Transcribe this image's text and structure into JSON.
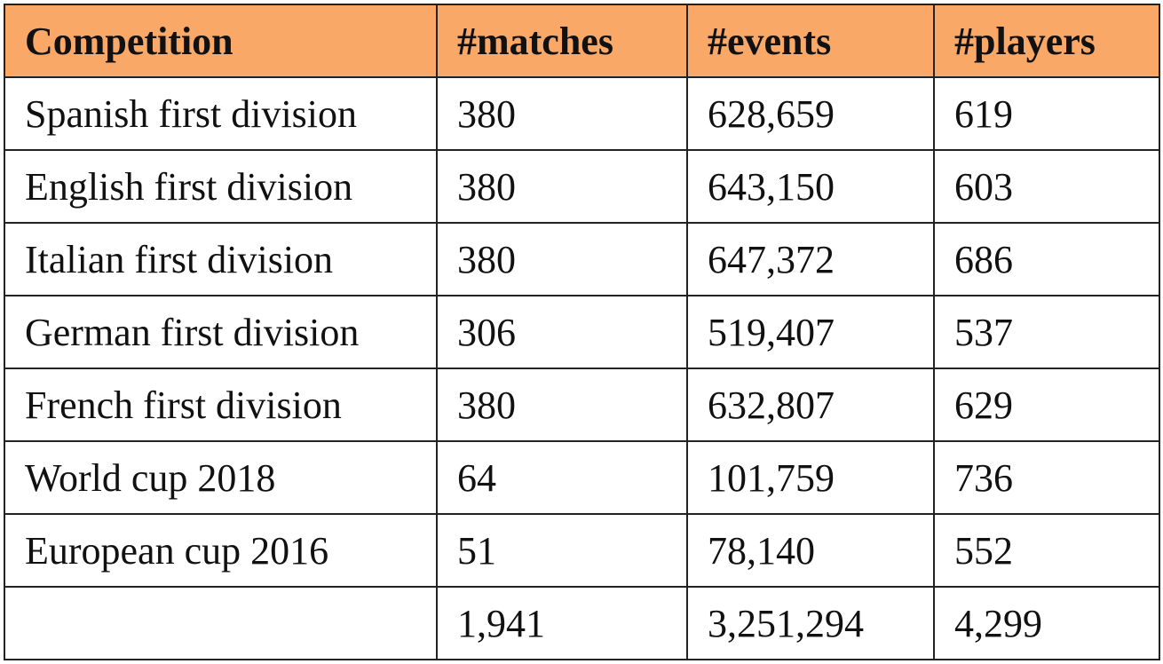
{
  "table": {
    "header_bg": "#f9a868",
    "columns": [
      "Competition",
      "#matches",
      "#events",
      "#players"
    ],
    "rows": [
      [
        "Spanish first division",
        "380",
        "628,659",
        "619"
      ],
      [
        "English first division",
        "380",
        "643,150",
        "603"
      ],
      [
        "Italian first division",
        "380",
        "647,372",
        "686"
      ],
      [
        "German first division",
        "306",
        "519,407",
        "537"
      ],
      [
        "French first division",
        "380",
        "632,807",
        "629"
      ],
      [
        "World cup 2018",
        "64",
        "101,759",
        "736"
      ],
      [
        "European cup 2016",
        "51",
        "78,140",
        "552"
      ],
      [
        "",
        "1,941",
        "3,251,294",
        "4,299"
      ]
    ]
  }
}
